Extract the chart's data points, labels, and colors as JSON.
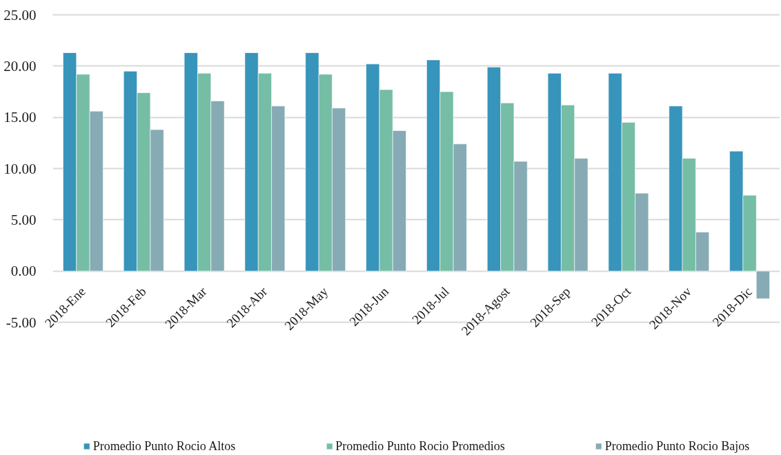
{
  "chart_data": {
    "type": "bar",
    "categories": [
      "2018-Ene",
      "2018-Feb",
      "2018-Mar",
      "2018-Abr",
      "2018-May",
      "2018-Jun",
      "2018-Jul",
      "2018-Agost",
      "2018-Sep",
      "2018-Oct",
      "2018-Nov",
      "2018-Dic"
    ],
    "series": [
      {
        "name": "Promedio Punto Rocio Altos",
        "color": "#3794ba",
        "values": [
          21.3,
          19.5,
          21.3,
          21.3,
          21.3,
          20.2,
          20.6,
          19.9,
          19.3,
          19.3,
          16.1,
          11.7
        ]
      },
      {
        "name": "Promedio Punto Rocio Promedios",
        "color": "#76bda6",
        "values": [
          19.2,
          17.4,
          19.3,
          19.3,
          19.2,
          17.7,
          17.5,
          16.4,
          16.2,
          14.5,
          11.0,
          7.4
        ]
      },
      {
        "name": "Promedio Punto Rocio Bajos",
        "color": "#86abb5",
        "values": [
          15.6,
          13.8,
          16.6,
          16.1,
          15.9,
          13.7,
          12.4,
          10.7,
          11.0,
          7.6,
          3.8,
          -2.7
        ]
      }
    ],
    "ylim": [
      -5,
      25
    ],
    "yticks": [
      {
        "value": -5,
        "label": "-5.00"
      },
      {
        "value": 0,
        "label": "0.00"
      },
      {
        "value": 5,
        "label": "5.00"
      },
      {
        "value": 10,
        "label": "10.00"
      },
      {
        "value": 15,
        "label": "15.00"
      },
      {
        "value": 20,
        "label": "20.00"
      },
      {
        "value": 25,
        "label": "25.00"
      }
    ],
    "grid": "y",
    "legend": "bottom"
  }
}
